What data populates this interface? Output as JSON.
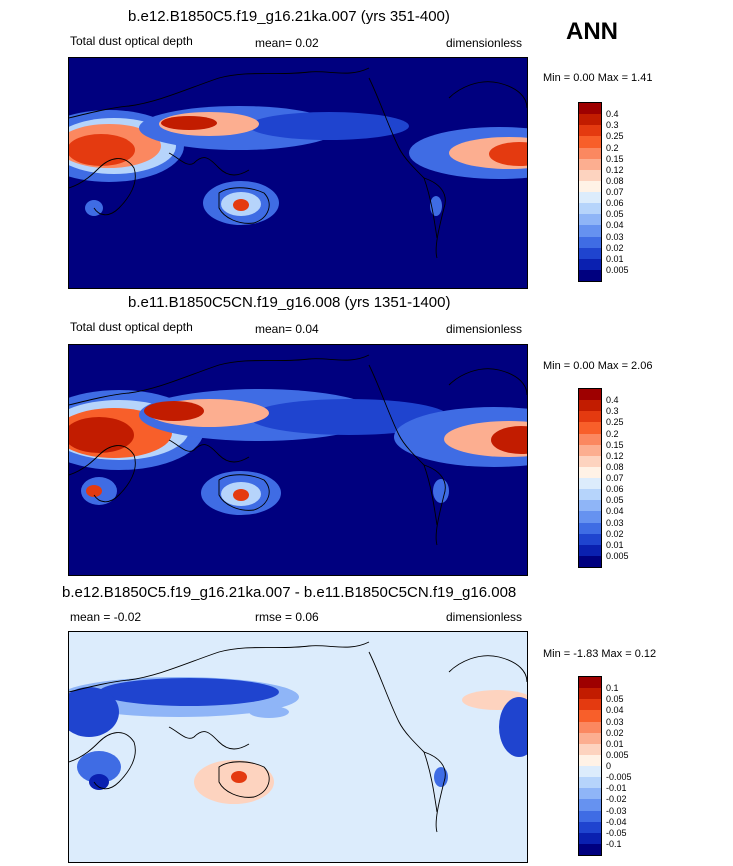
{
  "season": "ANN",
  "panels": [
    {
      "title": "b.e12.B1850C5.f19_g16.21ka.007 (yrs 351-400)",
      "variable": "Total dust optical depth",
      "stat": "mean=  0.02",
      "units": "dimensionless",
      "minmax": "Min =   0.00 Max =   1.41"
    },
    {
      "title": "b.e11.B1850C5CN.f19_g16.008 (yrs 1351-1400)",
      "variable": "Total dust optical depth",
      "stat": "mean=  0.04",
      "units": "dimensionless",
      "minmax": "Min =   0.00 Max =   2.06"
    },
    {
      "title": "b.e12.B1850C5.f19_g16.21ka.007 - b.e11.B1850C5CN.f19_g16.008",
      "mean": "mean =  -0.02",
      "stat": "rmse =  0.06",
      "units": "dimensionless",
      "minmax": "Min =  -1.83 Max =   0.12"
    }
  ],
  "colorbars": {
    "abs": {
      "labels": [
        "0.4",
        "0.3",
        "0.25",
        "0.2",
        "0.15",
        "0.12",
        "0.08",
        "0.07",
        "0.06",
        "0.05",
        "0.04",
        "0.03",
        "0.02",
        "0.01",
        "0.005"
      ],
      "colors": [
        "#9e0000",
        "#c21c00",
        "#e43a10",
        "#f85f2a",
        "#fb8860",
        "#fcae90",
        "#fdd3bf",
        "#fff2e6",
        "#dcecfc",
        "#b6d4fb",
        "#8fb5f7",
        "#6692f0",
        "#3f6ce4",
        "#1f44cf",
        "#0a20b0",
        "#00007f"
      ]
    },
    "diff": {
      "labels": [
        "0.1",
        "0.05",
        "0.04",
        "0.03",
        "0.02",
        "0.01",
        "0.005",
        "0",
        "-0.005",
        "-0.01",
        "-0.02",
        "-0.03",
        "-0.04",
        "-0.05",
        "-0.1"
      ],
      "colors": [
        "#9e0000",
        "#c21c00",
        "#e43a10",
        "#f85f2a",
        "#fb8860",
        "#fcae90",
        "#fdd3bf",
        "#fff2e6",
        "#dcecfc",
        "#b6d4fb",
        "#8fb5f7",
        "#6692f0",
        "#3f6ce4",
        "#1f44cf",
        "#0a20b0",
        "#00007f"
      ]
    }
  }
}
